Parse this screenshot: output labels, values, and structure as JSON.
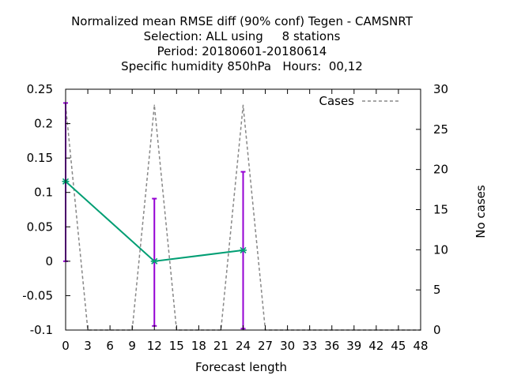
{
  "chart_data": {
    "type": "line",
    "title_lines": [
      "Normalized mean RMSE diff (90% conf) Tegen - CAMSNRT",
      "Selection: ALL using     8 stations",
      "Period: 20180601-20180614",
      "Specific humidity 850hPa   Hours:  00,12"
    ],
    "xlabel": "Forecast length",
    "ylabel": "",
    "y2label": "No cases",
    "xlim": [
      0,
      48
    ],
    "ylim": [
      -0.1,
      0.25
    ],
    "y2lim": [
      0,
      30
    ],
    "x_ticks": [
      0,
      3,
      6,
      9,
      12,
      15,
      18,
      21,
      24,
      27,
      30,
      33,
      36,
      39,
      42,
      45,
      48
    ],
    "y_ticks": [
      -0.1,
      -0.05,
      0,
      0.05,
      0.1,
      0.15,
      0.2,
      0.25
    ],
    "y_tick_labels": [
      "-0.1",
      "-0.05",
      "0",
      "0.05",
      "0.1",
      "0.15",
      "0.2",
      "0.25"
    ],
    "y2_ticks": [
      0,
      5,
      10,
      15,
      20,
      25,
      30
    ],
    "y2_tick_labels": [
      "0",
      "5",
      "10",
      "15",
      "20",
      "25",
      "30"
    ],
    "legend": {
      "label": "Cases",
      "position": "top-right"
    },
    "colors": {
      "rmse": "#009e73",
      "errorbar": "#9400d3",
      "cases": "#888888"
    },
    "series": [
      {
        "name": "RMSE diff",
        "axis": "y",
        "x": [
          0,
          12,
          24
        ],
        "values": [
          0.116,
          0.0,
          0.016
        ],
        "err_low": [
          0.0,
          -0.094,
          -0.098
        ],
        "err_high": [
          0.23,
          0.091,
          0.13
        ]
      },
      {
        "name": "Cases",
        "axis": "y2",
        "x": [
          0,
          3,
          6,
          9,
          12,
          15,
          18,
          21,
          24,
          27,
          30,
          33,
          36,
          39,
          42,
          45,
          48
        ],
        "values": [
          28,
          0,
          0,
          0,
          28,
          0,
          0,
          0,
          28,
          0,
          0,
          0,
          0,
          0,
          0,
          0,
          0
        ]
      }
    ]
  }
}
